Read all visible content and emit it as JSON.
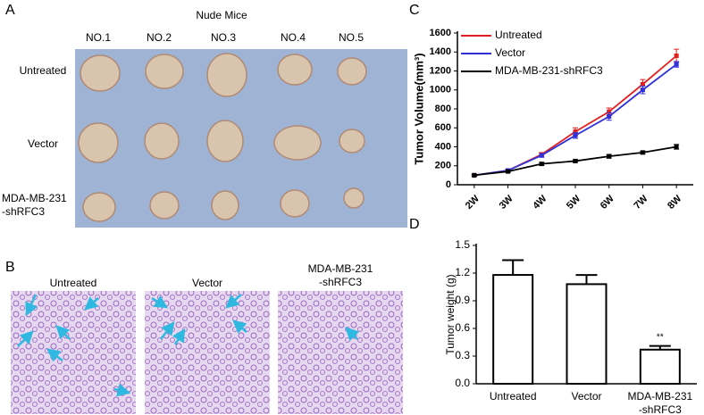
{
  "panel_labels": [
    "A",
    "B",
    "C",
    "D"
  ],
  "mice_photo": {
    "title": "Nude Mice",
    "columns": [
      "NO.1",
      "NO.2",
      "NO.3",
      "NO.4",
      "NO.5"
    ],
    "rows": [
      "Untreated",
      "Vector",
      "MDA-MB-231\n-shRFC3"
    ]
  },
  "histology": {
    "labels": [
      "Untreated",
      "Vector",
      "MDA-MB-231\n-shRFC3"
    ]
  },
  "chart_data": [
    {
      "type": "line",
      "categories": [
        "2W",
        "3W",
        "4W",
        "5W",
        "6W",
        "7W",
        "8W"
      ],
      "ylabel": "Tumor Volume(mm³)",
      "ylim": [
        0,
        1600
      ],
      "yticks": [
        0,
        200,
        400,
        600,
        800,
        1000,
        1200,
        1400,
        1600
      ],
      "legend": "upper left",
      "series": [
        {
          "name": "Untreated",
          "color": "#e02020",
          "values": [
            100,
            150,
            320,
            560,
            770,
            1060,
            1360
          ],
          "errors": [
            10,
            15,
            20,
            40,
            40,
            50,
            70
          ]
        },
        {
          "name": "Vector",
          "color": "#3030d8",
          "values": [
            100,
            150,
            310,
            520,
            720,
            1000,
            1270
          ],
          "errors": [
            10,
            15,
            20,
            30,
            40,
            40,
            30
          ]
        },
        {
          "name": "MDA-MB-231-shRFC3",
          "color": "#000000",
          "values": [
            100,
            140,
            220,
            250,
            300,
            340,
            400
          ],
          "errors": [
            10,
            10,
            15,
            15,
            20,
            15,
            25
          ]
        }
      ]
    },
    {
      "type": "bar",
      "categories": [
        "Untreated",
        "Vector",
        "MDA-MB-231\n-shRFC3"
      ],
      "values": [
        1.18,
        1.08,
        0.37
      ],
      "errors": [
        0.16,
        0.1,
        0.04
      ],
      "color": "#ffffff",
      "ylabel": "Tumor weight (g)",
      "ylim": [
        0,
        1.5
      ],
      "yticks": [
        {
          "value": 0,
          "label": "0.0"
        },
        0.3,
        0.6,
        0.9,
        1.2,
        1.5
      ],
      "annotation": "**"
    }
  ]
}
